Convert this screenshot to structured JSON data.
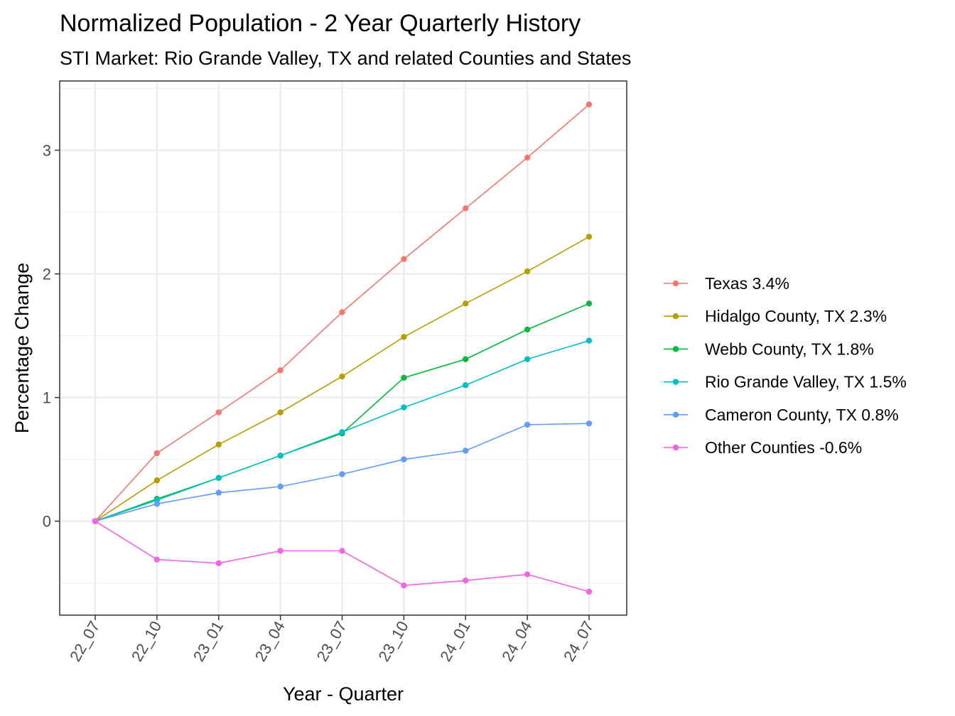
{
  "chart_data": {
    "type": "line",
    "title": "Normalized Population - 2 Year Quarterly History",
    "subtitle": "STI Market: Rio Grande Valley, TX and related Counties and States",
    "xlabel": "Year - Quarter",
    "ylabel": "Percentage Change",
    "categories": [
      "22_07",
      "22_10",
      "23_01",
      "23_04",
      "23_07",
      "23_10",
      "24_01",
      "24_04",
      "24_07"
    ],
    "ylim": [
      -0.76,
      3.56
    ],
    "yticks": [
      0,
      1,
      2,
      3
    ],
    "grid": true,
    "legend_position": "right",
    "series": [
      {
        "name": "Texas 3.4%",
        "color": "#F8766D",
        "values": [
          0,
          0.55,
          0.88,
          1.22,
          1.69,
          2.12,
          2.53,
          2.94,
          3.37
        ]
      },
      {
        "name": "Hidalgo County, TX 2.3%",
        "color": "#B79F00",
        "values": [
          0,
          0.33,
          0.62,
          0.88,
          1.17,
          1.49,
          1.76,
          2.02,
          2.3
        ]
      },
      {
        "name": "Webb County, TX 1.8%",
        "color": "#00BA38",
        "values": [
          0,
          0.18,
          0.35,
          0.53,
          0.71,
          1.16,
          1.31,
          1.55,
          1.76
        ]
      },
      {
        "name": "Rio Grande Valley, TX 1.5%",
        "color": "#00BFC4",
        "values": [
          0,
          0.17,
          0.35,
          0.53,
          0.72,
          0.92,
          1.1,
          1.31,
          1.46
        ]
      },
      {
        "name": "Cameron County, TX 0.8%",
        "color": "#619CFF",
        "values": [
          0,
          0.14,
          0.23,
          0.28,
          0.38,
          0.5,
          0.57,
          0.78,
          0.79
        ]
      },
      {
        "name": "Other Counties -0.6%",
        "color": "#F564E3",
        "values": [
          0,
          -0.31,
          -0.34,
          -0.24,
          -0.24,
          -0.52,
          -0.48,
          -0.43,
          -0.57
        ]
      }
    ]
  }
}
